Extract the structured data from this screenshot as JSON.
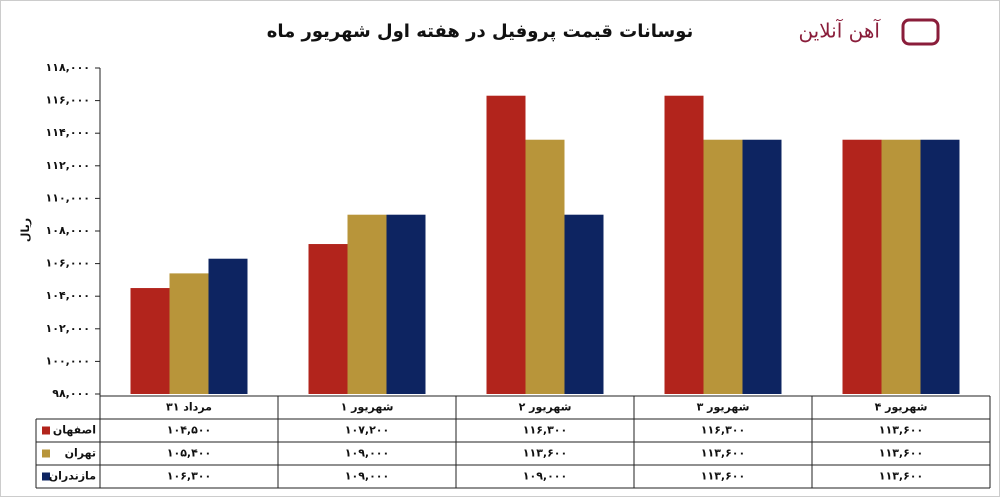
{
  "chart_data": {
    "type": "bar",
    "title": "نوسانات قیمت پروفیل در هفته اول شهریور ماه",
    "brand": "آهن آنلاین",
    "y_label": "ریال",
    "categories": [
      "۳۱ مرداد",
      "۱ شهریور",
      "۲ شهریور",
      "۳ شهریور",
      "۴ شهریور"
    ],
    "series": [
      {
        "name": "اصفهان",
        "color": "#b2241c",
        "values": [
          104500,
          107200,
          116300,
          116300,
          113600
        ],
        "value_labels": [
          "۱۰۴,۵۰۰",
          "۱۰۷,۲۰۰",
          "۱۱۶,۳۰۰",
          "۱۱۶,۳۰۰",
          "۱۱۳,۶۰۰"
        ]
      },
      {
        "name": "تهران",
        "color": "#b8953a",
        "values": [
          105400,
          109000,
          113600,
          113600,
          113600
        ],
        "value_labels": [
          "۱۰۵,۴۰۰",
          "۱۰۹,۰۰۰",
          "۱۱۳,۶۰۰",
          "۱۱۳,۶۰۰",
          "۱۱۳,۶۰۰"
        ]
      },
      {
        "name": "مازندران",
        "color": "#0d2461",
        "values": [
          106300,
          109000,
          109000,
          113600,
          113600
        ],
        "value_labels": [
          "۱۰۶,۳۰۰",
          "۱۰۹,۰۰۰",
          "۱۰۹,۰۰۰",
          "۱۱۳,۶۰۰",
          "۱۱۳,۶۰۰"
        ]
      }
    ],
    "ylim": [
      98000,
      118000
    ],
    "yticks": [
      {
        "value": 98000,
        "label": "۹۸,۰۰۰"
      },
      {
        "value": 100000,
        "label": "۱۰۰,۰۰۰"
      },
      {
        "value": 102000,
        "label": "۱۰۲,۰۰۰"
      },
      {
        "value": 104000,
        "label": "۱۰۴,۰۰۰"
      },
      {
        "value": 106000,
        "label": "۱۰۶,۰۰۰"
      },
      {
        "value": 108000,
        "label": "۱۰۸,۰۰۰"
      },
      {
        "value": 110000,
        "label": "۱۱۰,۰۰۰"
      },
      {
        "value": 112000,
        "label": "۱۱۲,۰۰۰"
      },
      {
        "value": 114000,
        "label": "۱۱۴,۰۰۰"
      },
      {
        "value": 116000,
        "label": "۱۱۶,۰۰۰"
      },
      {
        "value": 118000,
        "label": "۱۱۸,۰۰۰"
      }
    ]
  }
}
